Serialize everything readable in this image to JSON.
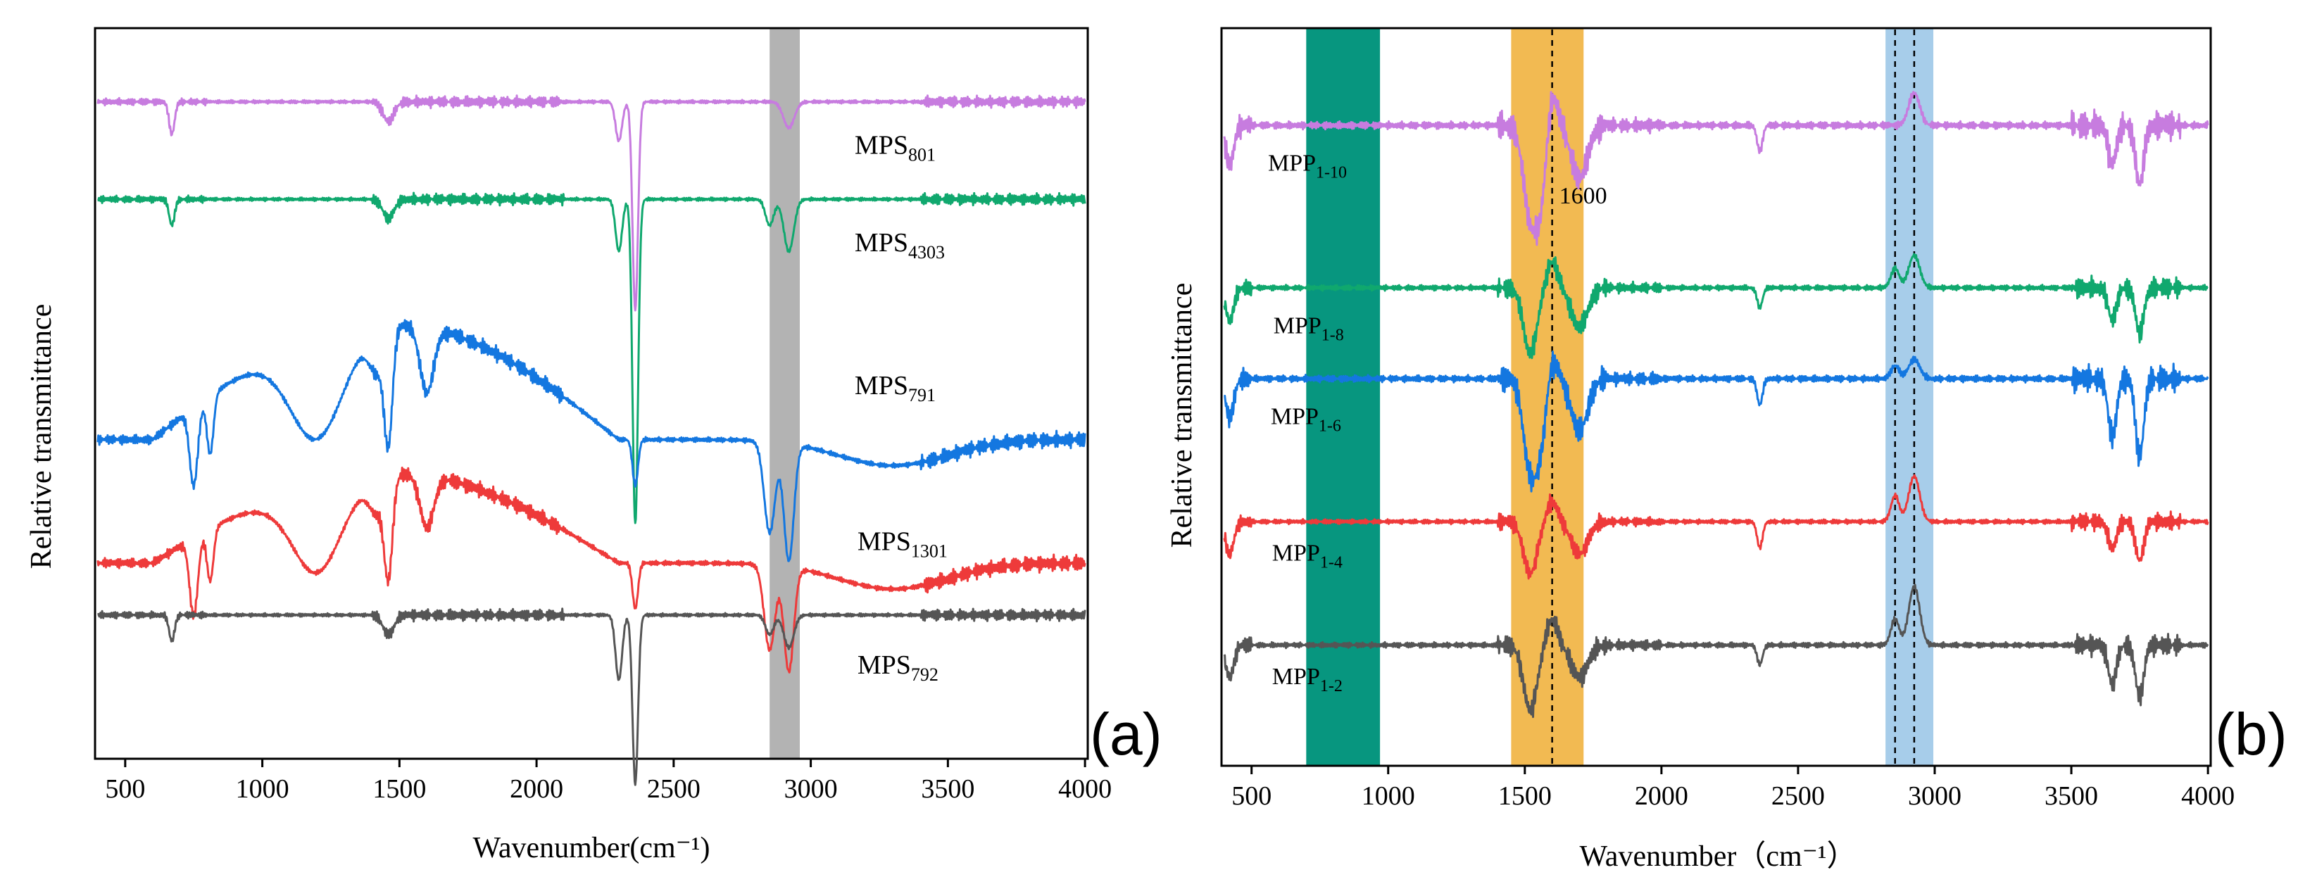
{
  "figure": {
    "panels": [
      {
        "id": "a",
        "label": "(a)"
      },
      {
        "id": "b",
        "label": "(b)"
      }
    ]
  },
  "chart_data": [
    {
      "type": "line",
      "panel": "(a)",
      "title": "",
      "xlabel": "Wavenumber(cm⁻¹)",
      "ylabel": "Relative transmittance",
      "xlim": [
        390,
        4010
      ],
      "ylim": [
        0,
        100
      ],
      "xticks": [
        500,
        1000,
        1500,
        2000,
        2500,
        3000,
        3500,
        4000
      ],
      "grid": false,
      "y_axis_ticks": false,
      "highlight_bands": [
        {
          "x0": 2850,
          "x1": 2960,
          "color": "#b3b3b3"
        }
      ],
      "series": [
        {
          "name": "MPS801",
          "label_base": "MPS",
          "label_sub": "801",
          "color": "#c77cdf",
          "baseline": 93,
          "label_x": 3160,
          "label_y": 85,
          "peaks": [
            [
              670,
              5,
              10
            ],
            [
              1460,
              3,
              20
            ],
            [
              2300,
              6,
              12
            ],
            [
              2360,
              32,
              10
            ],
            [
              2920,
              4,
              20
            ]
          ],
          "noise": 1.0,
          "plateau": null
        },
        {
          "name": "MPS4303",
          "label_base": "MPS",
          "label_sub": "4303",
          "color": "#10a86e",
          "baseline": 78,
          "label_x": 3160,
          "label_y": 70,
          "peaks": [
            [
              670,
              4,
              10
            ],
            [
              1460,
              3,
              20
            ],
            [
              2300,
              8,
              12
            ],
            [
              2360,
              50,
              10
            ],
            [
              2850,
              4,
              15
            ],
            [
              2920,
              8,
              18
            ]
          ],
          "noise": 1.0,
          "plateau": null
        },
        {
          "name": "MPS791",
          "label_base": "MPS",
          "label_sub": "791",
          "color": "#1477e0",
          "baseline": 59,
          "label_x": 3160,
          "label_y": 48,
          "peaks": [
            [
              750,
              12,
              15
            ],
            [
              810,
              9,
              12
            ],
            [
              1200,
              10,
              90
            ],
            [
              1420,
              6,
              30
            ],
            [
              1460,
              16,
              15
            ],
            [
              1600,
              10,
              25
            ],
            [
              2360,
              7,
              10
            ],
            [
              2850,
              14,
              20
            ],
            [
              2920,
              18,
              18
            ],
            [
              3300,
              4,
              200
            ]
          ],
          "noise": 1.4,
          "plateau": [
            600,
            2300,
            -18
          ]
        },
        {
          "name": "MPS1301",
          "label_base": "MPS",
          "label_sub": "1301",
          "color": "#ee3a3a",
          "baseline": 36,
          "label_x": 3170,
          "label_y": 24,
          "peaks": [
            [
              750,
              12,
              15
            ],
            [
              810,
              8,
              12
            ],
            [
              1200,
              8,
              80
            ],
            [
              1420,
              5,
              30
            ],
            [
              1460,
              14,
              15
            ],
            [
              1600,
              8,
              25
            ],
            [
              2360,
              7,
              10
            ],
            [
              2850,
              13,
              20
            ],
            [
              2920,
              16,
              18
            ],
            [
              3300,
              4,
              200
            ]
          ],
          "noise": 1.4,
          "plateau": [
            600,
            2300,
            -14
          ]
        },
        {
          "name": "MPS792",
          "label_base": "MPS",
          "label_sub": "792",
          "color": "#555555",
          "baseline": 14,
          "label_x": 3170,
          "label_y": 5,
          "peaks": [
            [
              670,
              4,
              10
            ],
            [
              1460,
              3,
              20
            ],
            [
              2300,
              10,
              12
            ],
            [
              2360,
              26,
              10
            ],
            [
              2850,
              3,
              15
            ],
            [
              2920,
              5,
              18
            ]
          ],
          "noise": 1.0,
          "plateau": null
        }
      ]
    },
    {
      "type": "line",
      "panel": "(b)",
      "title": "",
      "xlabel": "Wavenumber（cm⁻¹）",
      "ylabel": "Relative transmittance",
      "xlim": [
        390,
        4010
      ],
      "ylim": [
        0,
        100
      ],
      "xticks": [
        500,
        1000,
        1500,
        2000,
        2500,
        3000,
        3500,
        4000
      ],
      "grid": false,
      "y_axis_ticks": false,
      "highlight_bands": [
        {
          "x0": 700,
          "x1": 970,
          "color": "#07967f"
        },
        {
          "x0": 1450,
          "x1": 1715,
          "color": "#f2ba52"
        },
        {
          "x0": 2820,
          "x1": 2995,
          "color": "#a7cdea"
        }
      ],
      "reference_lines": [
        {
          "x": 1600,
          "label": "1600",
          "label_y": 79
        },
        {
          "x": 2855,
          "label": ""
        },
        {
          "x": 2925,
          "label": ""
        }
      ],
      "series": [
        {
          "name": "MPP1-10",
          "label_base": "MPP",
          "label_sub": "1-10",
          "color": "#c77cdf",
          "baseline": 91,
          "label_x": 560,
          "label_y": 84,
          "peaks": [
            [
              420,
              6,
              15
            ],
            [
              1520,
              14,
              25
            ],
            [
              1560,
              10,
              20
            ],
            [
              1700,
              8,
              30
            ],
            [
              2360,
              4,
              10
            ],
            [
              3650,
              6,
              15
            ],
            [
              3750,
              9,
              15
            ]
          ],
          "bumps": [
            [
              1600,
              5,
              20
            ],
            [
              2925,
              5,
              20
            ]
          ],
          "noise": 2.6,
          "plateau": null
        },
        {
          "name": "MPP1-8",
          "label_base": "MPP",
          "label_sub": "1-8",
          "color": "#10a86e",
          "baseline": 66,
          "label_x": 580,
          "label_y": 59,
          "peaks": [
            [
              420,
              5,
              15
            ],
            [
              1520,
              10,
              25
            ],
            [
              1700,
              6,
              30
            ],
            [
              2360,
              3,
              10
            ],
            [
              3650,
              5,
              15
            ],
            [
              3750,
              7,
              15
            ]
          ],
          "bumps": [
            [
              1600,
              4,
              20
            ],
            [
              2855,
              3,
              15
            ],
            [
              2925,
              5,
              20
            ]
          ],
          "noise": 1.9,
          "plateau": null
        },
        {
          "name": "MPP1-6",
          "label_base": "MPP",
          "label_sub": "1-6",
          "color": "#1477e0",
          "baseline": 52,
          "label_x": 570,
          "label_y": 45,
          "peaks": [
            [
              420,
              6,
              15
            ],
            [
              1520,
              14,
              25
            ],
            [
              1560,
              8,
              20
            ],
            [
              1700,
              8,
              30
            ],
            [
              2360,
              4,
              10
            ],
            [
              3650,
              9,
              15
            ],
            [
              3750,
              12,
              15
            ]
          ],
          "bumps": [
            [
              1600,
              3,
              20
            ],
            [
              2855,
              2,
              15
            ],
            [
              2925,
              3,
              20
            ]
          ],
          "noise": 2.4,
          "plateau": null
        },
        {
          "name": "MPP1-4",
          "label_base": "MPP",
          "label_sub": "1-4",
          "color": "#ee3a3a",
          "baseline": 30,
          "label_x": 575,
          "label_y": 24,
          "peaks": [
            [
              420,
              5,
              15
            ],
            [
              1520,
              8,
              25
            ],
            [
              1700,
              5,
              30
            ],
            [
              2360,
              4,
              10
            ],
            [
              3650,
              4,
              15
            ],
            [
              3750,
              6,
              15
            ]
          ],
          "bumps": [
            [
              1600,
              3,
              20
            ],
            [
              2855,
              4,
              15
            ],
            [
              2925,
              7,
              20
            ]
          ],
          "noise": 1.6,
          "plateau": null
        },
        {
          "name": "MPP1-2",
          "label_base": "MPP",
          "label_sub": "1-2",
          "color": "#555555",
          "baseline": 11,
          "label_x": 575,
          "label_y": 5,
          "peaks": [
            [
              420,
              5,
              15
            ],
            [
              1520,
              10,
              25
            ],
            [
              1700,
              5,
              30
            ],
            [
              2360,
              3,
              10
            ],
            [
              3650,
              6,
              15
            ],
            [
              3750,
              8,
              15
            ]
          ],
          "bumps": [
            [
              1600,
              4,
              20
            ],
            [
              2855,
              4,
              15
            ],
            [
              2925,
              9,
              20
            ]
          ],
          "noise": 1.9,
          "plateau": null
        }
      ]
    }
  ]
}
